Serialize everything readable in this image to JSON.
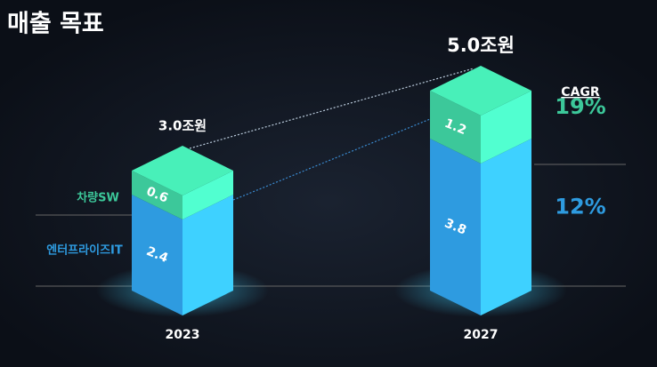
{
  "chart_data": {
    "type": "stacked-bar-3d",
    "title": "매출 목표",
    "categories": [
      "2023",
      "2027"
    ],
    "series": [
      {
        "name": "엔터프라이즈IT",
        "color": "#2e9be0",
        "values": [
          2.4,
          3.8
        ],
        "cagr": 12,
        "cagr_label": "12%"
      },
      {
        "name": "차량SW",
        "color": "#3cc89a",
        "values": [
          0.6,
          1.2
        ],
        "cagr": 19,
        "cagr_label": "19%"
      }
    ],
    "totals": [
      3.0,
      5.0
    ],
    "total_labels": [
      "3.0조원",
      "5.0조원"
    ],
    "cagr_title": "CAGR"
  }
}
